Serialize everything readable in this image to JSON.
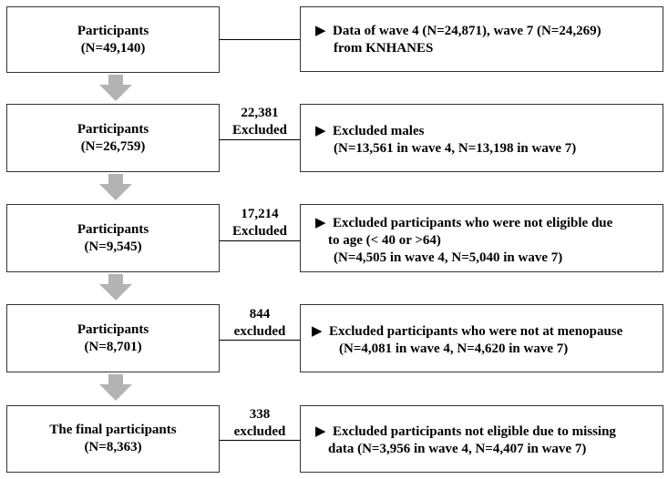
{
  "steps": [
    {
      "title": "Participants",
      "count": "(N=49,140)"
    },
    {
      "title": "Participants",
      "count": "(N=26,759)"
    },
    {
      "title": "Participants",
      "count": "(N=9,545)"
    },
    {
      "title": "Participants",
      "count": "(N=8,701)"
    },
    {
      "title": "The final participants",
      "count": "(N=8,363)"
    }
  ],
  "notes": [
    {
      "lines": [
        "Data of wave 4 (N=24,871), wave 7 (N=24,269)",
        "from KNHANES"
      ]
    },
    {
      "lines": [
        "Excluded males",
        "(N=13,561 in wave 4, N=13,198 in wave 7)"
      ]
    },
    {
      "lines": [
        "Excluded participants who were not eligible due",
        "to age (< 40 or >64)",
        "(N=4,505 in wave 4, N=5,040 in wave 7)"
      ]
    },
    {
      "lines": [
        "Excluded participants who were not at menopause",
        "(N=4,081 in wave 4, N=4,620 in wave 7)"
      ]
    },
    {
      "lines": [
        "Excluded participants not eligible due to missing",
        "data (N=3,956 in wave 4, N=4,407 in wave 7)"
      ]
    }
  ],
  "exclusions": [
    {
      "count": "22,381",
      "label": "Excluded"
    },
    {
      "count": "17,214",
      "label": "Excluded"
    },
    {
      "count": "844",
      "label": "excluded"
    },
    {
      "count": "338",
      "label": "excluded"
    }
  ],
  "marker": "▶",
  "colors": {
    "arrow": "#b3b3b3",
    "border": "#333333"
  }
}
